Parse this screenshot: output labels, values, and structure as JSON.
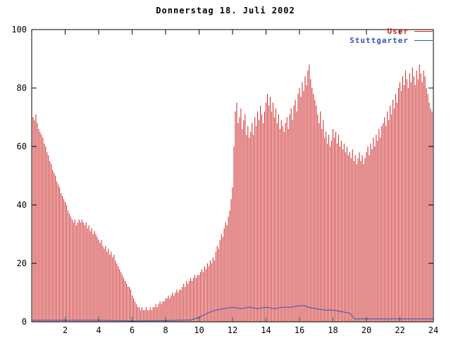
{
  "title": "Donnerstag 18. Juli 2002",
  "chart_data": {
    "type": "bar",
    "title": "Donnerstag 18. Juli 2002",
    "xlabel": "",
    "ylabel": "",
    "xlim": [
      0,
      24
    ],
    "ylim": [
      0,
      100
    ],
    "xticks": [
      2,
      4,
      6,
      8,
      10,
      12,
      14,
      16,
      18,
      20,
      22,
      24
    ],
    "yticks": [
      0,
      20,
      40,
      60,
      80,
      100
    ],
    "grid": "off",
    "legend_position": "top-right",
    "series": [
      {
        "name": "User",
        "type": "impulse",
        "color": "#cc2222",
        "x_start": 0,
        "x_step": 0.0833333,
        "values": [
          72,
          70,
          69,
          71,
          68,
          66,
          65,
          64,
          63,
          61,
          60,
          58,
          57,
          55,
          54,
          52,
          51,
          50,
          48,
          47,
          46,
          44,
          43,
          42,
          41,
          40,
          38,
          37,
          36,
          35,
          34,
          35,
          33,
          34,
          35,
          34,
          35,
          34,
          33,
          34,
          32,
          33,
          31,
          32,
          30,
          31,
          30,
          29,
          28,
          27,
          28,
          26,
          25,
          26,
          24,
          25,
          23,
          24,
          22,
          23,
          21,
          20,
          19,
          18,
          17,
          16,
          15,
          14,
          13,
          12,
          12,
          11,
          9,
          8,
          7,
          6,
          5,
          5,
          4,
          5,
          4,
          4,
          5,
          4,
          4,
          5,
          4,
          5,
          5,
          6,
          5,
          6,
          7,
          6,
          7,
          7,
          8,
          8,
          9,
          8,
          9,
          10,
          9,
          10,
          11,
          10,
          11,
          11,
          12,
          13,
          12,
          14,
          13,
          14,
          15,
          14,
          15,
          16,
          15,
          16,
          16,
          17,
          18,
          17,
          19,
          18,
          20,
          19,
          21,
          20,
          22,
          21,
          24,
          26,
          25,
          28,
          30,
          29,
          32,
          34,
          33,
          36,
          38,
          42,
          46,
          60,
          72,
          75,
          68,
          70,
          73,
          66,
          69,
          71,
          64,
          67,
          63,
          65,
          68,
          64,
          70,
          67,
          72,
          69,
          74,
          71,
          68,
          72,
          75,
          78,
          74,
          77,
          72,
          75,
          70,
          73,
          68,
          71,
          66,
          69,
          67,
          65,
          68,
          70,
          66,
          71,
          73,
          69,
          74,
          76,
          72,
          78,
          80,
          77,
          82,
          79,
          84,
          81,
          86,
          88,
          83,
          80,
          78,
          76,
          74,
          71,
          68,
          72,
          66,
          69,
          63,
          65,
          61,
          64,
          60,
          62,
          66,
          63,
          65,
          61,
          64,
          60,
          62,
          59,
          61,
          58,
          60,
          57,
          58,
          56,
          59,
          55,
          57,
          54,
          56,
          58,
          55,
          57,
          54,
          56,
          58,
          60,
          57,
          61,
          59,
          63,
          60,
          64,
          62,
          66,
          63,
          67,
          68,
          70,
          67,
          72,
          69,
          74,
          71,
          76,
          73,
          78,
          75,
          80,
          82,
          79,
          84,
          81,
          86,
          83,
          80,
          85,
          82,
          87,
          84,
          81,
          86,
          83,
          88,
          85,
          82,
          86,
          84,
          80,
          78,
          75,
          73,
          72
        ]
      },
      {
        "name": "Stuttgarter",
        "type": "line",
        "color": "#3355bb",
        "points": [
          [
            0,
            0.5
          ],
          [
            2,
            0.5
          ],
          [
            4,
            0.5
          ],
          [
            6,
            0.3
          ],
          [
            8,
            0.4
          ],
          [
            9.5,
            0.6
          ],
          [
            10,
            1.5
          ],
          [
            10.5,
            3
          ],
          [
            11,
            4
          ],
          [
            11.5,
            4.5
          ],
          [
            12,
            5
          ],
          [
            12.5,
            4.5
          ],
          [
            13,
            5
          ],
          [
            13.5,
            4.5
          ],
          [
            14,
            5
          ],
          [
            14.5,
            4.5
          ],
          [
            15,
            5
          ],
          [
            15.5,
            5
          ],
          [
            16,
            5.5
          ],
          [
            16.3,
            5.5
          ],
          [
            16.5,
            5
          ],
          [
            17,
            4.5
          ],
          [
            17.5,
            4
          ],
          [
            18,
            4
          ],
          [
            18.5,
            3.5
          ],
          [
            19,
            3
          ],
          [
            19.3,
            1
          ],
          [
            20,
            1
          ],
          [
            21,
            1
          ],
          [
            22,
            1
          ],
          [
            23,
            1
          ],
          [
            24,
            1
          ]
        ]
      }
    ]
  }
}
